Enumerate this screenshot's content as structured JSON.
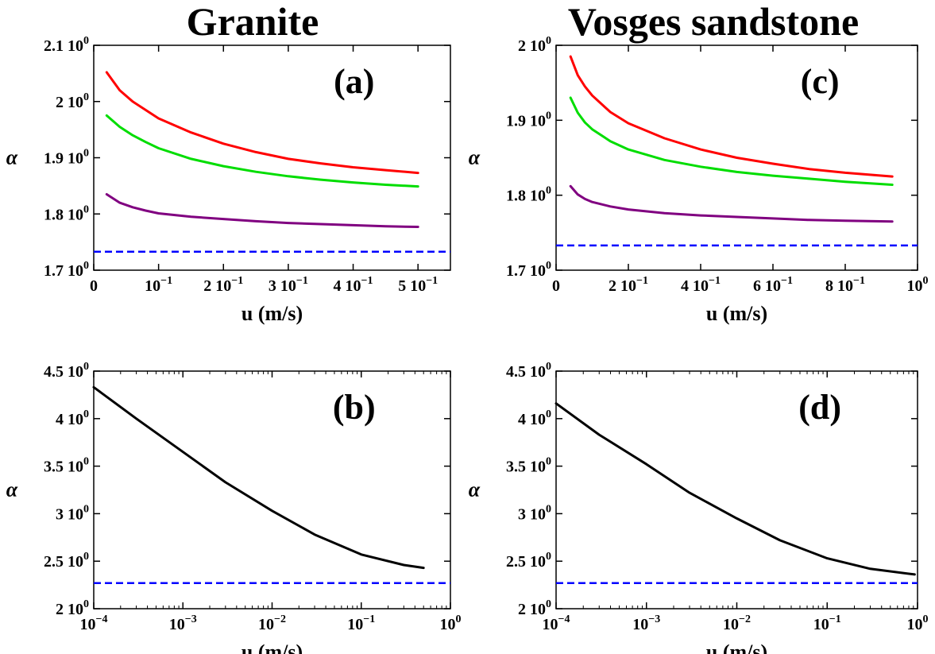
{
  "figure": {
    "titles": [
      "Granite",
      "Vosges sandstone"
    ]
  },
  "chart_data": [
    {
      "type": "line",
      "panel": "(a)",
      "column_title": "Granite",
      "xlabel": "u (m/s)",
      "ylabel": "α",
      "xscale": "linear",
      "xlim": [
        0,
        0.55
      ],
      "ylim": [
        1.7,
        2.1
      ],
      "xticks": [
        {
          "v": 0,
          "m": "0",
          "e": ""
        },
        {
          "v": 0.1,
          "m": "10",
          "e": "−1"
        },
        {
          "v": 0.2,
          "m": "2 10",
          "e": "−1"
        },
        {
          "v": 0.3,
          "m": "3 10",
          "e": "−1"
        },
        {
          "v": 0.4,
          "m": "4 10",
          "e": "−1"
        },
        {
          "v": 0.5,
          "m": "5 10",
          "e": "−1"
        }
      ],
      "yticks": [
        {
          "v": 1.7,
          "m": "1.7 10",
          "e": "0"
        },
        {
          "v": 1.8,
          "m": "1.8 10",
          "e": "0"
        },
        {
          "v": 1.9,
          "m": "1.9 10",
          "e": "0"
        },
        {
          "v": 2.0,
          "m": "2 10",
          "e": "0"
        },
        {
          "v": 2.1,
          "m": "2.1 10",
          "e": "0"
        }
      ],
      "series": [
        {
          "color": "#ff0000",
          "x": [
            0.02,
            0.04,
            0.06,
            0.08,
            0.1,
            0.15,
            0.2,
            0.25,
            0.3,
            0.35,
            0.4,
            0.45,
            0.5
          ],
          "y": [
            2.052,
            2.02,
            2.0,
            1.985,
            1.97,
            1.945,
            1.925,
            1.91,
            1.898,
            1.89,
            1.883,
            1.878,
            1.873
          ]
        },
        {
          "color": "#00dd00",
          "x": [
            0.02,
            0.04,
            0.06,
            0.08,
            0.1,
            0.15,
            0.2,
            0.25,
            0.3,
            0.35,
            0.4,
            0.45,
            0.5
          ],
          "y": [
            1.975,
            1.955,
            1.94,
            1.928,
            1.917,
            1.898,
            1.885,
            1.875,
            1.867,
            1.861,
            1.856,
            1.852,
            1.849
          ]
        },
        {
          "color": "#800080",
          "x": [
            0.02,
            0.04,
            0.06,
            0.08,
            0.1,
            0.15,
            0.2,
            0.25,
            0.3,
            0.35,
            0.4,
            0.45,
            0.5
          ],
          "y": [
            1.835,
            1.82,
            1.812,
            1.806,
            1.801,
            1.795,
            1.791,
            1.787,
            1.784,
            1.782,
            1.78,
            1.778,
            1.777
          ]
        },
        {
          "color": "#0000ff",
          "dashed": true,
          "x": [
            0,
            0.55
          ],
          "y": [
            1.733,
            1.733
          ]
        }
      ]
    },
    {
      "type": "line",
      "panel": "(b)",
      "xlabel": "u (m/s)",
      "ylabel": "α",
      "xscale": "log",
      "xlim": [
        0.0001,
        1
      ],
      "ylim": [
        2.0,
        4.5
      ],
      "xticks": [
        {
          "v": 0.0001,
          "m": "10",
          "e": "−4"
        },
        {
          "v": 0.001,
          "m": "10",
          "e": "−3"
        },
        {
          "v": 0.01,
          "m": "10",
          "e": "−2"
        },
        {
          "v": 0.1,
          "m": "10",
          "e": "−1"
        },
        {
          "v": 1,
          "m": "10",
          "e": "0"
        }
      ],
      "yticks": [
        {
          "v": 2.0,
          "m": "2 10",
          "e": "0"
        },
        {
          "v": 2.5,
          "m": "2.5 10",
          "e": "0"
        },
        {
          "v": 3.0,
          "m": "3 10",
          "e": "0"
        },
        {
          "v": 3.5,
          "m": "3.5 10",
          "e": "0"
        },
        {
          "v": 4.0,
          "m": "4 10",
          "e": "0"
        },
        {
          "v": 4.5,
          "m": "4.5 10",
          "e": "0"
        }
      ],
      "series": [
        {
          "color": "#000000",
          "x": [
            0.0001,
            0.0003,
            0.001,
            0.003,
            0.01,
            0.03,
            0.1,
            0.3,
            0.5
          ],
          "y": [
            4.33,
            4.0,
            3.65,
            3.33,
            3.03,
            2.78,
            2.57,
            2.46,
            2.43
          ]
        },
        {
          "color": "#0000ff",
          "dashed": true,
          "x": [
            0.0001,
            1
          ],
          "y": [
            2.27,
            2.27
          ]
        }
      ]
    },
    {
      "type": "line",
      "panel": "(c)",
      "column_title": "Vosges sandstone",
      "xlabel": "u (m/s)",
      "ylabel": "α",
      "xscale": "linear",
      "xlim": [
        0,
        1.0
      ],
      "ylim": [
        1.7,
        2.0
      ],
      "xticks": [
        {
          "v": 0,
          "m": "0",
          "e": ""
        },
        {
          "v": 0.2,
          "m": "2 10",
          "e": "−1"
        },
        {
          "v": 0.4,
          "m": "4 10",
          "e": "−1"
        },
        {
          "v": 0.6,
          "m": "6 10",
          "e": "−1"
        },
        {
          "v": 0.8,
          "m": "8 10",
          "e": "−1"
        },
        {
          "v": 1.0,
          "m": "10",
          "e": "0"
        }
      ],
      "yticks": [
        {
          "v": 1.7,
          "m": "1.7 10",
          "e": "0"
        },
        {
          "v": 1.8,
          "m": "1.8 10",
          "e": "0"
        },
        {
          "v": 1.9,
          "m": "1.9 10",
          "e": "0"
        },
        {
          "v": 2.0,
          "m": "2 10",
          "e": "0"
        }
      ],
      "series": [
        {
          "color": "#ff0000",
          "x": [
            0.04,
            0.06,
            0.08,
            0.1,
            0.15,
            0.2,
            0.3,
            0.4,
            0.5,
            0.6,
            0.7,
            0.8,
            0.93
          ],
          "y": [
            1.985,
            1.96,
            1.945,
            1.933,
            1.911,
            1.896,
            1.876,
            1.861,
            1.85,
            1.842,
            1.835,
            1.83,
            1.825
          ]
        },
        {
          "color": "#00dd00",
          "x": [
            0.04,
            0.06,
            0.08,
            0.1,
            0.15,
            0.2,
            0.3,
            0.4,
            0.5,
            0.6,
            0.7,
            0.8,
            0.93
          ],
          "y": [
            1.93,
            1.91,
            1.897,
            1.888,
            1.872,
            1.861,
            1.847,
            1.838,
            1.831,
            1.826,
            1.822,
            1.818,
            1.814
          ]
        },
        {
          "color": "#800080",
          "x": [
            0.04,
            0.06,
            0.08,
            0.1,
            0.15,
            0.2,
            0.3,
            0.4,
            0.5,
            0.6,
            0.7,
            0.8,
            0.93
          ],
          "y": [
            1.812,
            1.801,
            1.795,
            1.791,
            1.785,
            1.781,
            1.776,
            1.773,
            1.771,
            1.769,
            1.767,
            1.766,
            1.765
          ]
        },
        {
          "color": "#0000ff",
          "dashed": true,
          "x": [
            0,
            1.0
          ],
          "y": [
            1.733,
            1.733
          ]
        }
      ]
    },
    {
      "type": "line",
      "panel": "(d)",
      "xlabel": "u (m/s)",
      "ylabel": "α",
      "xscale": "log",
      "xlim": [
        0.0001,
        1
      ],
      "ylim": [
        2.0,
        4.5
      ],
      "xticks": [
        {
          "v": 0.0001,
          "m": "10",
          "e": "−4"
        },
        {
          "v": 0.001,
          "m": "10",
          "e": "−3"
        },
        {
          "v": 0.01,
          "m": "10",
          "e": "−2"
        },
        {
          "v": 0.1,
          "m": "10",
          "e": "−1"
        },
        {
          "v": 1,
          "m": "10",
          "e": "0"
        }
      ],
      "yticks": [
        {
          "v": 2.0,
          "m": "2 10",
          "e": "0"
        },
        {
          "v": 2.5,
          "m": "2.5 10",
          "e": "0"
        },
        {
          "v": 3.0,
          "m": "3 10",
          "e": "0"
        },
        {
          "v": 3.5,
          "m": "3.5 10",
          "e": "0"
        },
        {
          "v": 4.0,
          "m": "4 10",
          "e": "0"
        },
        {
          "v": 4.5,
          "m": "4.5 10",
          "e": "0"
        }
      ],
      "series": [
        {
          "color": "#000000",
          "x": [
            0.0001,
            0.0003,
            0.001,
            0.003,
            0.01,
            0.03,
            0.1,
            0.3,
            0.93
          ],
          "y": [
            4.16,
            3.83,
            3.52,
            3.22,
            2.95,
            2.72,
            2.53,
            2.42,
            2.36
          ]
        },
        {
          "color": "#0000ff",
          "dashed": true,
          "x": [
            0.0001,
            1
          ],
          "y": [
            2.27,
            2.27
          ]
        }
      ]
    }
  ]
}
